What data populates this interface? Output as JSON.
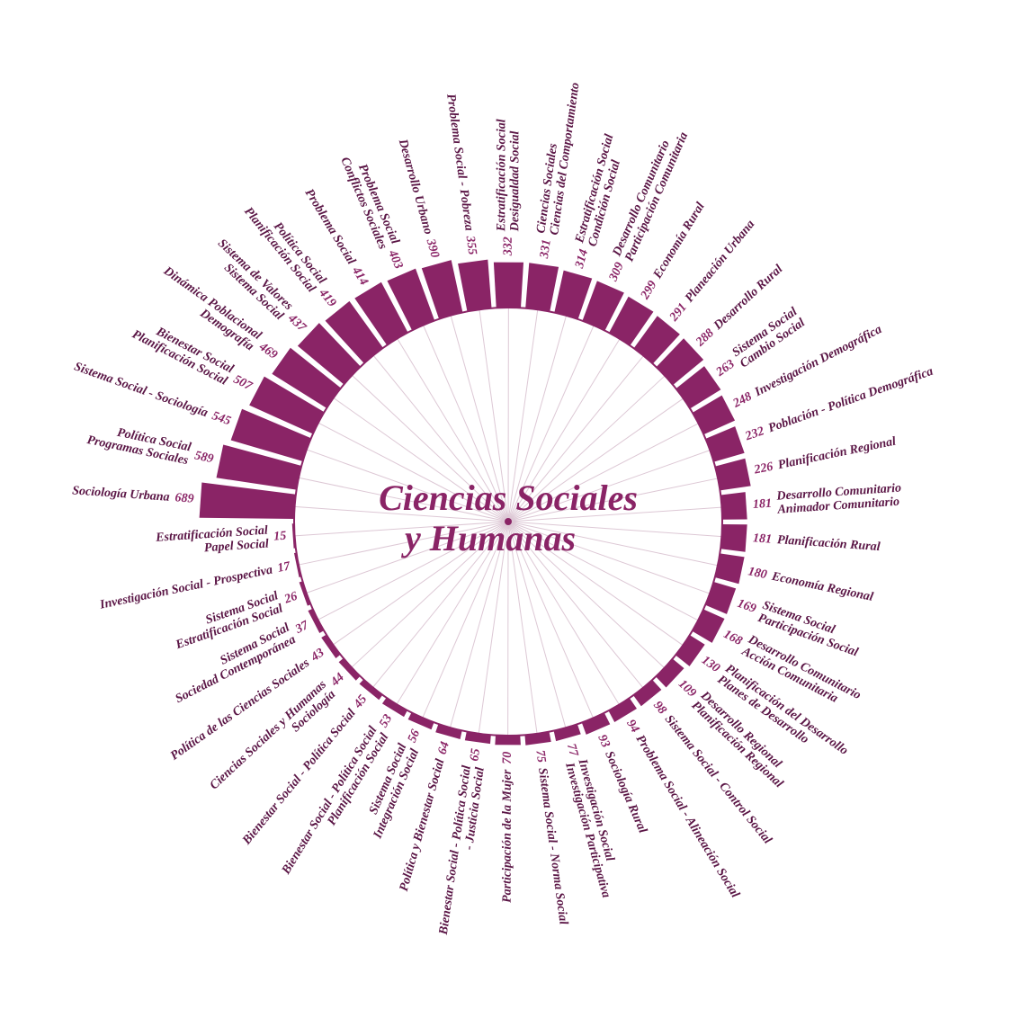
{
  "chart_data": {
    "type": "radial-bar",
    "title": [
      "Ciencias Sociales",
      "y Humanas"
    ],
    "color": "#8a2466",
    "categories": [
      [
        "Sociología Urbana"
      ],
      [
        "Política Social",
        "Programas Sociales"
      ],
      [
        "Sistema Social - Sociología"
      ],
      [
        "Bienestar Social",
        "Planificación Social"
      ],
      [
        "Dinámica Poblacional",
        "Demografía"
      ],
      [
        "Sistema de Valores",
        "Sistema Social"
      ],
      [
        "Política Social",
        "Planificación Social"
      ],
      [
        "Problema Social"
      ],
      [
        "Problema Social",
        "Conflictos Sociales"
      ],
      [
        "Desarrollo Urbano"
      ],
      [
        "Problema Social - Pobreza"
      ],
      [
        "Estratificación Social",
        "Desigualdad Social"
      ],
      [
        "Ciencias Sociales",
        "Ciencias del Comportamiento"
      ],
      [
        "Estratificación Social",
        "Condición Social"
      ],
      [
        "Desarrollo Comunitario",
        "Participación Comunitaria"
      ],
      [
        "Economía Rural"
      ],
      [
        "Planeación Urbana"
      ],
      [
        "Desarrollo Rural"
      ],
      [
        "Sistema Social",
        "Cambio Social"
      ],
      [
        "Investigación Demográfica"
      ],
      [
        "Población - Política Demográfica"
      ],
      [
        "Planificación Regional"
      ],
      [
        "Desarrollo Comunitario",
        "Animador Comunitario"
      ],
      [
        "Planificación Rural"
      ],
      [
        "Economía Regional"
      ],
      [
        "Sistema Social",
        "Participación Social"
      ],
      [
        "Desarrollo Comunitario",
        "Acción Comunitaria"
      ],
      [
        "Planificación del Desarrollo",
        "Planes de Desarrollo"
      ],
      [
        "Desarrollo Regional",
        "Planificación Regional"
      ],
      [
        "Sistema Social - Control Social"
      ],
      [
        "Problema Social - Alineación Social"
      ],
      [
        "Sociología Rural"
      ],
      [
        "Investigación Social",
        "Investigación Participativa"
      ],
      [
        "Sistema Social - Norma Social"
      ],
      [
        "Participación de la Mujer"
      ],
      [
        "Bienestar Social - Política Social",
        "- Justicia Social"
      ],
      [
        "Política y Bienestar Social"
      ],
      [
        "Sistema Social",
        "Integración Social"
      ],
      [
        "Bienestar Social - Política Social",
        "Planificación Social"
      ],
      [
        "Bienestar Social - Política Social"
      ],
      [
        "Ciencias Sociales y Humanas",
        "Sociología"
      ],
      [
        "Política de las Ciencias Sociales"
      ],
      [
        "Sistema Social",
        "Sociedad Contemporánea"
      ],
      [
        "Sistema Social",
        "Estratificación Social"
      ],
      [
        "Investigación Social - Prospectiva"
      ],
      [
        "Estratificación Social",
        "Papel Social"
      ]
    ],
    "values": [
      689,
      589,
      545,
      507,
      469,
      437,
      419,
      414,
      403,
      390,
      355,
      332,
      331,
      314,
      309,
      299,
      291,
      288,
      263,
      248,
      232,
      226,
      181,
      181,
      180,
      169,
      168,
      130,
      109,
      98,
      94,
      93,
      77,
      75,
      70,
      65,
      64,
      56,
      53,
      45,
      44,
      43,
      37,
      26,
      17,
      15
    ]
  }
}
